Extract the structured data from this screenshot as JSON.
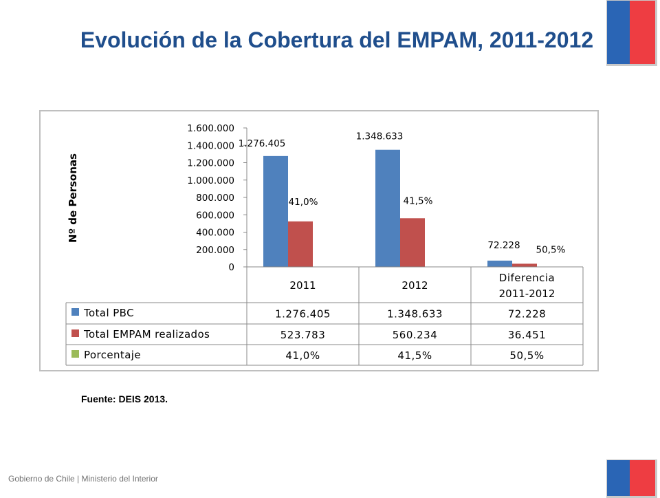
{
  "slide": {
    "title": "Evolución de la Cobertura del EMPAM, 2011-2012",
    "source": "Fuente: DEIS 2013.",
    "footer": "Gobierno de Chile | Ministerio del Interior",
    "flag_colors": {
      "blue": "#2a65b5",
      "red": "#ee3d42"
    }
  },
  "chart_data": {
    "type": "bar",
    "ylabel": "Nº de Personas",
    "ylim": [
      0,
      1600000
    ],
    "yticks": [
      "0",
      "200.000",
      "400.000",
      "600.000",
      "800.000",
      "1.000.000",
      "1.200.000",
      "1.400.000",
      "1.600.000"
    ],
    "ytick_values": [
      0,
      200000,
      400000,
      600000,
      800000,
      1000000,
      1200000,
      1400000,
      1600000
    ],
    "categories": [
      "2011",
      "2012",
      "Diferencia 2011-2012"
    ],
    "category_lines": [
      [
        "2011"
      ],
      [
        "2012"
      ],
      [
        "Diferencia",
        "2011-2012"
      ]
    ],
    "series": [
      {
        "name": "Total PBC",
        "color": "#4f81bd",
        "values": [
          1276405,
          1348633,
          72228
        ],
        "labels": [
          "1.276.405",
          "1.348.633",
          "72.228"
        ],
        "plotted": true
      },
      {
        "name": "Total EMPAM realizados",
        "color": "#c0504d",
        "values": [
          523783,
          560234,
          36451
        ],
        "labels": [
          "523.783",
          "560.234",
          "36.451"
        ],
        "plotted": true
      },
      {
        "name": "Porcentaje",
        "color": "#9bbb59",
        "values": [
          41.0,
          41.5,
          50.5
        ],
        "labels": [
          "41,0%",
          "41,5%",
          "50,5%"
        ],
        "plotted": false
      }
    ],
    "bar_annotations": [
      {
        "category": 0,
        "text": "1.276.405"
      },
      {
        "category": 0,
        "text": "41,0%"
      },
      {
        "category": 1,
        "text": "1.348.633"
      },
      {
        "category": 1,
        "text": "41,5%"
      },
      {
        "category": 2,
        "text": "72.228"
      },
      {
        "category": 2,
        "text": "50,5%"
      }
    ],
    "data_table": true,
    "grid": false
  }
}
